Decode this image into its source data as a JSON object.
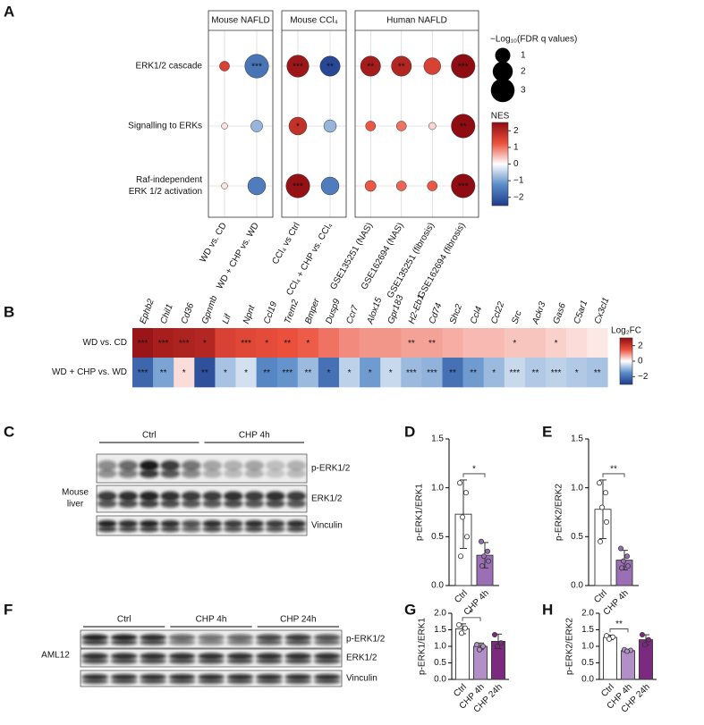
{
  "panel_labels": [
    "A",
    "B",
    "C",
    "D",
    "E",
    "F",
    "G",
    "H"
  ],
  "chart_data": [
    {
      "type": "dot-matrix",
      "groups": [
        {
          "title": "Mouse NAFLD",
          "columns": [
            "WD vs. CD",
            "WD + CHP vs. WD"
          ]
        },
        {
          "title": "Mouse CCl₄",
          "columns": [
            "CCl₄ vs Ctrl",
            "CCl₄ + CHP vs. CCl₄"
          ]
        },
        {
          "title": "Human NAFLD",
          "columns": [
            "GSE135251 (NAS)",
            "GSE162694 (NAS)",
            "GSE135251 (fibrosis)",
            "GSE162694 (fibrosis)"
          ]
        }
      ],
      "rows": [
        {
          "lines": [
            "ERK1/2 cascade"
          ],
          "nes": [
            1.5,
            -1.6,
            2.3,
            -2.3,
            2.2,
            2.0,
            1.5,
            2.5
          ],
          "fdr": [
            0.3,
            3,
            2.5,
            2,
            2,
            2,
            1.3,
            3
          ],
          "stars": [
            null,
            "***",
            "***",
            "**",
            "**",
            "**",
            null,
            "***"
          ]
        },
        {
          "lines": [
            "Signalling to ERKs"
          ],
          "nes": [
            0.2,
            -0.8,
            1.8,
            -0.8,
            1.2,
            1.0,
            0.3,
            2.5
          ],
          "fdr": [
            0.05,
            0.5,
            1.5,
            0.6,
            0.3,
            0.3,
            0.1,
            3
          ],
          "stars": [
            null,
            null,
            "*",
            null,
            null,
            null,
            null,
            "**"
          ]
        },
        {
          "lines": [
            "Raf-independent",
            "ERK 1/2 activation"
          ],
          "nes": [
            0.2,
            -1.5,
            2.4,
            -1.5,
            1.2,
            1.1,
            1.2,
            2.5
          ],
          "fdr": [
            0.05,
            1.5,
            3,
            1.5,
            0.4,
            0.3,
            0.3,
            3
          ],
          "stars": [
            null,
            null,
            "***",
            null,
            null,
            null,
            null,
            "***"
          ]
        }
      ],
      "size_legend": {
        "title": "−Log₁₀(FDR q values)",
        "ticks": [
          1,
          2,
          3
        ]
      },
      "color_legend": {
        "title": "NES",
        "lim": [
          -2.5,
          2.5
        ],
        "ticks": [
          2,
          1,
          0,
          {
            "value": -1,
            "label": "−1"
          },
          {
            "value": -2,
            "label": "−2"
          }
        ]
      }
    },
    {
      "type": "heatmap",
      "columns": [
        "Ephb2",
        "Chil1",
        "Cd36",
        "Gpnmb",
        "Lif",
        "Npnt",
        "Ccl19",
        "Trem2",
        "Bmper",
        "Dusp9",
        "Ccr7",
        "Alox15",
        "Gpr183",
        "H2-Eb1",
        "Cd74",
        "Shc2",
        "Ccl4",
        "Ccl22",
        "Src",
        "Ackr3",
        "Gas6",
        "C5ar1",
        "Cx3cl1"
      ],
      "rows": [
        "WD vs. CD",
        "WD + CHP vs. WD"
      ],
      "values": [
        [
          2.8,
          2.6,
          2.5,
          2.4,
          1.8,
          1.7,
          1.6,
          1.5,
          1.4,
          1.2,
          1.0,
          0.9,
          0.9,
          0.8,
          0.8,
          0.7,
          0.6,
          0.6,
          0.5,
          0.5,
          0.4,
          0.3,
          0.2
        ],
        [
          -2.2,
          -1.2,
          0.3,
          -2.6,
          -0.8,
          -0.4,
          -1.6,
          -1.4,
          -0.9,
          -2.0,
          -0.6,
          -1.3,
          -0.5,
          -0.9,
          -1.0,
          -2.0,
          -1.3,
          -0.9,
          -0.5,
          -0.7,
          -0.6,
          -0.7,
          -0.8
        ]
      ],
      "stars": [
        [
          "***",
          "***",
          "***",
          "*",
          null,
          "***",
          "*",
          "**",
          "*",
          null,
          null,
          null,
          null,
          "**",
          "**",
          null,
          null,
          null,
          "*",
          null,
          "*",
          null,
          null
        ],
        [
          "***",
          "**",
          "*",
          "**",
          "*",
          "*",
          "**",
          "***",
          "**",
          "*",
          "*",
          "*",
          "*",
          "***",
          "***",
          "**",
          "**",
          "*",
          "***",
          "**",
          "***",
          "*",
          "**"
        ]
      ],
      "color_legend": {
        "title": "Log₂FC",
        "lim": [
          -3,
          3
        ],
        "ticks": [
          2,
          0,
          {
            "value": -2,
            "label": "−2"
          }
        ]
      }
    },
    {
      "type": "bar",
      "y_label": "p-ERK1/ERK1",
      "categories": [
        "Ctrl",
        "CHP 4h"
      ],
      "colors": [
        "#ffffff",
        "#9b6fb5"
      ],
      "values": [
        0.73,
        0.31
      ],
      "errors": [
        0.35,
        0.13
      ],
      "points": [
        [
          1.05,
          0.95,
          0.7,
          0.5,
          0.3
        ],
        [
          0.45,
          0.35,
          0.3,
          0.25,
          0.2
        ]
      ],
      "significance": [
        null,
        "*"
      ],
      "ylim": [
        0,
        1.5
      ],
      "yticks": [
        {
          "value": 0,
          "label": "0.0"
        },
        0.5,
        {
          "value": 1,
          "label": "1.0"
        },
        1.5
      ]
    },
    {
      "type": "bar",
      "y_label": "p-ERK2/ERK2",
      "categories": [
        "Ctrl",
        "CHP 4h"
      ],
      "colors": [
        "#ffffff",
        "#9b6fb5"
      ],
      "values": [
        0.78,
        0.26
      ],
      "errors": [
        0.3,
        0.1
      ],
      "points": [
        [
          1.05,
          0.95,
          0.8,
          0.65,
          0.45
        ],
        [
          0.38,
          0.3,
          0.25,
          0.2,
          0.18
        ]
      ],
      "significance": [
        null,
        "**"
      ],
      "ylim": [
        0,
        1.5
      ],
      "yticks": [
        {
          "value": 0,
          "label": "0.0"
        },
        0.5,
        {
          "value": 1,
          "label": "1.0"
        },
        1.5
      ]
    },
    {
      "type": "bar",
      "y_label": "p-ERK1/ERK1",
      "categories": [
        "Ctrl",
        "CHP 4h",
        "CHP 24h"
      ],
      "colors": [
        "#ffffff",
        "#b38fc7",
        "#7b2a7f"
      ],
      "values": [
        1.53,
        1.0,
        1.15
      ],
      "errors": [
        0.15,
        0.1,
        0.22
      ],
      "points": [
        [
          1.65,
          1.55,
          1.4
        ],
        [
          1.05,
          1.0,
          0.9
        ],
        [
          1.35,
          1.1,
          1.0
        ]
      ],
      "significance": [
        null,
        "*",
        null
      ],
      "ylim": [
        0,
        2
      ],
      "yticks": [
        {
          "value": 0,
          "label": "0.0"
        },
        0.5,
        {
          "value": 1,
          "label": "1.0"
        },
        1.5,
        {
          "value": 2,
          "label": "2.0"
        }
      ]
    },
    {
      "type": "bar",
      "y_label": "p-ERK2/ERK2",
      "categories": [
        "Ctrl",
        "CHP 4h",
        "CHP 24h"
      ],
      "colors": [
        "#ffffff",
        "#b38fc7",
        "#7b2a7f"
      ],
      "values": [
        1.27,
        0.87,
        1.2
      ],
      "errors": [
        0.07,
        0.03,
        0.15
      ],
      "points": [
        [
          1.32,
          1.28,
          1.22
        ],
        [
          0.9,
          0.88,
          0.85
        ],
        [
          1.35,
          1.2,
          1.05
        ]
      ],
      "significance": [
        null,
        "**",
        null
      ],
      "ylim": [
        0,
        2
      ],
      "yticks": [
        {
          "value": 0,
          "label": "0.0"
        },
        0.5,
        {
          "value": 1,
          "label": "1.0"
        },
        1.5,
        {
          "value": 2,
          "label": "2.0"
        }
      ]
    }
  ],
  "blots": [
    {
      "groups": [
        "Ctrl",
        "CHP 4h"
      ],
      "bands": [
        "p-ERK1/2",
        "ERK1/2",
        "Vinculin"
      ],
      "sample": [
        "Mouse",
        "liver"
      ]
    },
    {
      "groups": [
        "Ctrl",
        "CHP 4h",
        "CHP 24h"
      ],
      "bands": [
        "p-ERK1/2",
        "ERK1/2",
        "Vinculin"
      ],
      "sample": [
        "AML12"
      ]
    }
  ]
}
